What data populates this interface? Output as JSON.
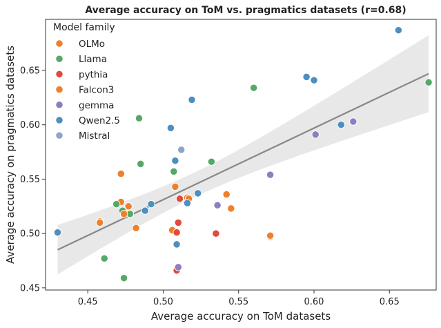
{
  "chart_data": {
    "type": "scatter",
    "title": "Average accuracy on ToM vs. pragmatics datasets (r=0.68)",
    "xlabel": "Average accuracy on ToM datasets",
    "ylabel": "Average accuracy on pragmatics datasets",
    "xlim": [
      0.422,
      0.681
    ],
    "ylim": [
      0.448,
      0.697
    ],
    "xticks": [
      0.45,
      0.5,
      0.55,
      0.6,
      0.65
    ],
    "yticks": [
      0.45,
      0.5,
      0.55,
      0.6,
      0.65
    ],
    "xtick_labels": [
      "0.45",
      "0.50",
      "0.55",
      "0.60",
      "0.65"
    ],
    "ytick_labels": [
      "0.45",
      "0.50",
      "0.55",
      "0.60",
      "0.65"
    ],
    "legend": {
      "title": "Model family",
      "placement": "upper-left"
    },
    "regression": {
      "x": [
        0.43,
        0.676
      ],
      "y": [
        0.485,
        0.647
      ],
      "color": "#888888",
      "ci_band": true
    },
    "series": [
      {
        "name": "OLMo",
        "color": "#ee7f2d",
        "points": [
          [
            0.458,
            0.511
          ],
          [
            0.472,
            0.555
          ],
          [
            0.472,
            0.529
          ],
          [
            0.477,
            0.525
          ],
          [
            0.482,
            0.505
          ],
          [
            0.506,
            0.503
          ],
          [
            0.508,
            0.543
          ],
          [
            0.516,
            0.533
          ],
          [
            0.542,
            0.536
          ],
          [
            0.545,
            0.523
          ],
          [
            0.571,
            0.497
          ]
        ]
      },
      {
        "name": "Llama",
        "color": "#55a868",
        "points": [
          [
            0.461,
            0.477
          ],
          [
            0.469,
            0.527
          ],
          [
            0.473,
            0.521
          ],
          [
            0.474,
            0.459
          ],
          [
            0.478,
            0.518
          ],
          [
            0.484,
            0.606
          ],
          [
            0.485,
            0.564
          ],
          [
            0.507,
            0.557
          ],
          [
            0.532,
            0.566
          ],
          [
            0.56,
            0.634
          ],
          [
            0.676,
            0.639
          ]
        ]
      },
      {
        "name": "pythia",
        "color": "#e24a3b",
        "points": [
          [
            0.509,
            0.466
          ],
          [
            0.509,
            0.501
          ],
          [
            0.51,
            0.51
          ],
          [
            0.511,
            0.532
          ],
          [
            0.535,
            0.5
          ]
        ]
      },
      {
        "name": "Falcon3",
        "color": "#ee7f2d",
        "points": [
          [
            0.458,
            0.51
          ],
          [
            0.474,
            0.518
          ],
          [
            0.517,
            0.532
          ],
          [
            0.571,
            0.498
          ]
        ]
      },
      {
        "name": "gemma",
        "color": "#8c7fc0",
        "points": [
          [
            0.51,
            0.469
          ],
          [
            0.536,
            0.526
          ],
          [
            0.571,
            0.554
          ],
          [
            0.601,
            0.591
          ],
          [
            0.626,
            0.603
          ]
        ]
      },
      {
        "name": "Qwen2.5",
        "color": "#4c8fc0",
        "points": [
          [
            0.43,
            0.501
          ],
          [
            0.488,
            0.521
          ],
          [
            0.492,
            0.527
          ],
          [
            0.505,
            0.597
          ],
          [
            0.508,
            0.567
          ],
          [
            0.509,
            0.49
          ],
          [
            0.516,
            0.528
          ],
          [
            0.519,
            0.623
          ],
          [
            0.523,
            0.537
          ],
          [
            0.595,
            0.644
          ],
          [
            0.6,
            0.641
          ],
          [
            0.618,
            0.6
          ],
          [
            0.656,
            0.687
          ]
        ]
      },
      {
        "name": "Mistral",
        "color": "#8ea4c8",
        "points": [
          [
            0.512,
            0.577
          ]
        ]
      }
    ]
  }
}
